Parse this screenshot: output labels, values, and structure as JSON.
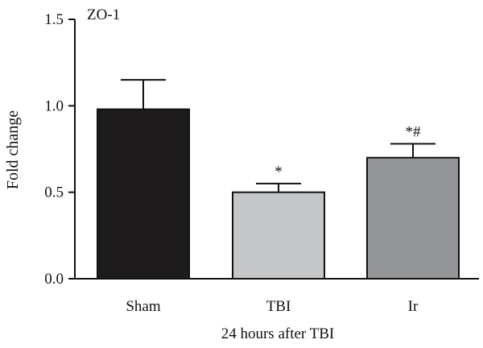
{
  "chart_data": {
    "type": "bar",
    "title": "ZO-1",
    "xlabel": "24 hours after TBI",
    "ylabel": "Fold change",
    "categories": [
      "Sham",
      "TBI",
      "Ir"
    ],
    "values": [
      0.98,
      0.5,
      0.7
    ],
    "errors": [
      0.17,
      0.05,
      0.08
    ],
    "annotations": [
      "",
      "*",
      "*#"
    ],
    "colors": [
      "#1e1b1c",
      "#c4c6c9",
      "#939598"
    ],
    "ylim": [
      0,
      1.5
    ],
    "yticks": [
      0.0,
      0.5,
      1.0,
      1.5
    ],
    "ytick_labels": [
      "0.0",
      "0.5",
      "1.0",
      "1.5"
    ],
    "grid": false,
    "legend": "none"
  }
}
